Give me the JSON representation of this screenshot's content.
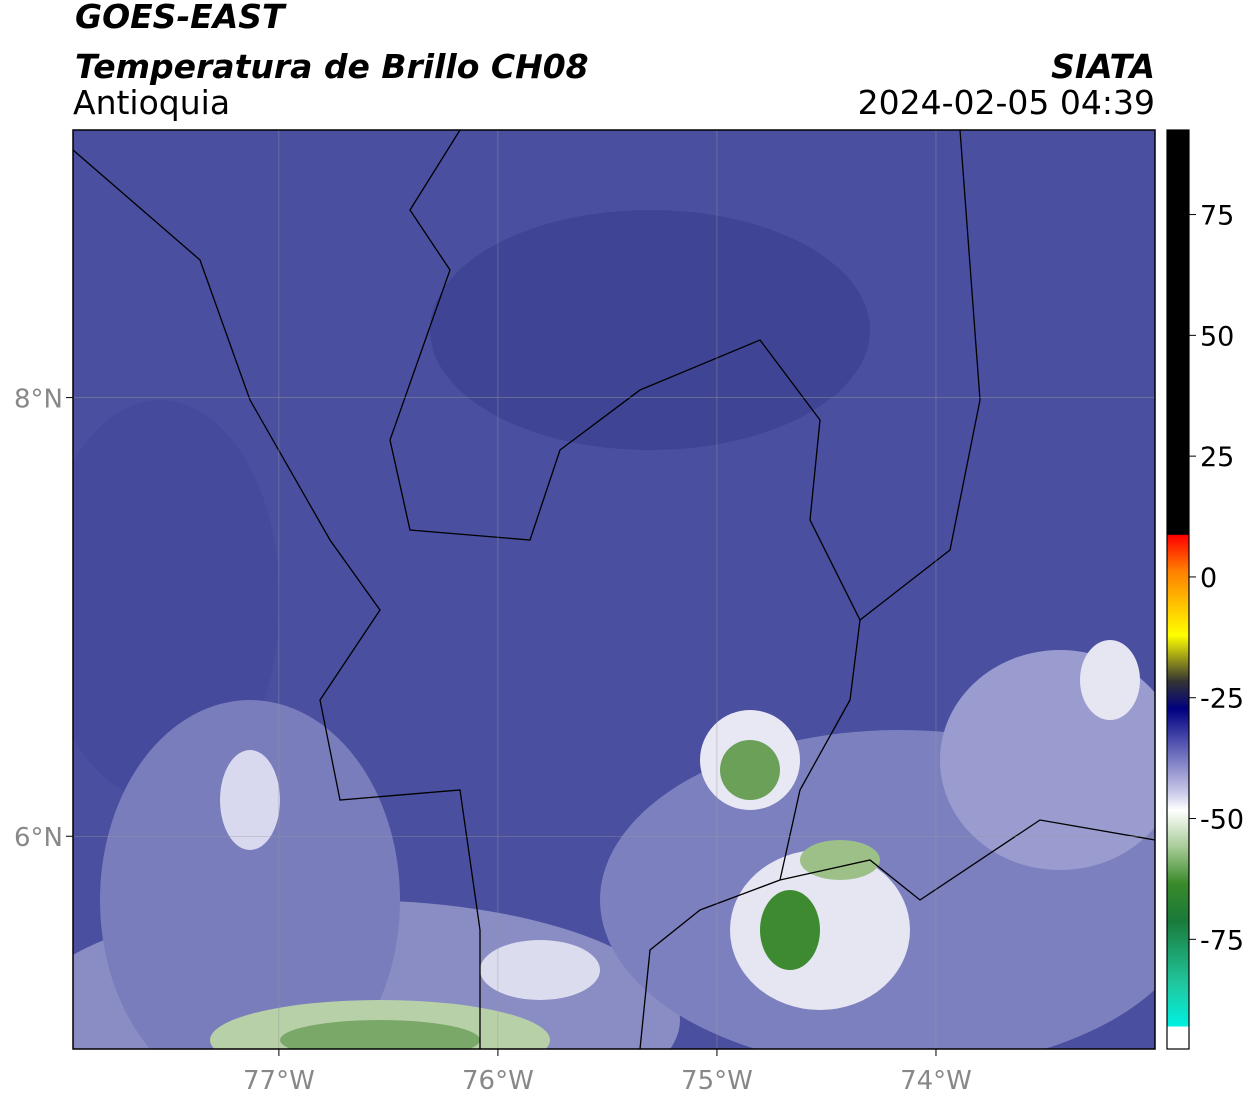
{
  "header": {
    "satellite": "GOES-EAST",
    "product": "Temperatura de Brillo CH08",
    "region": "Antioquia",
    "source": "SIATA",
    "datetime": "2024-02-05 04:39"
  },
  "map": {
    "xlim": [
      -77.94,
      -73.0
    ],
    "ylim": [
      5.03,
      9.22
    ],
    "xticks": [
      {
        "value": -77,
        "label": "77°W"
      },
      {
        "value": -76,
        "label": "76°W"
      },
      {
        "value": -75,
        "label": "75°W"
      },
      {
        "value": -74,
        "label": "74°W"
      }
    ],
    "yticks": [
      {
        "value": 8,
        "label": "8°N"
      },
      {
        "value": 6,
        "label": "6°N"
      }
    ]
  },
  "colorbar": {
    "lim": [
      -97.7,
      92.5
    ],
    "ticks": [
      75,
      50,
      25,
      0,
      -25,
      -50,
      -75
    ]
  }
}
